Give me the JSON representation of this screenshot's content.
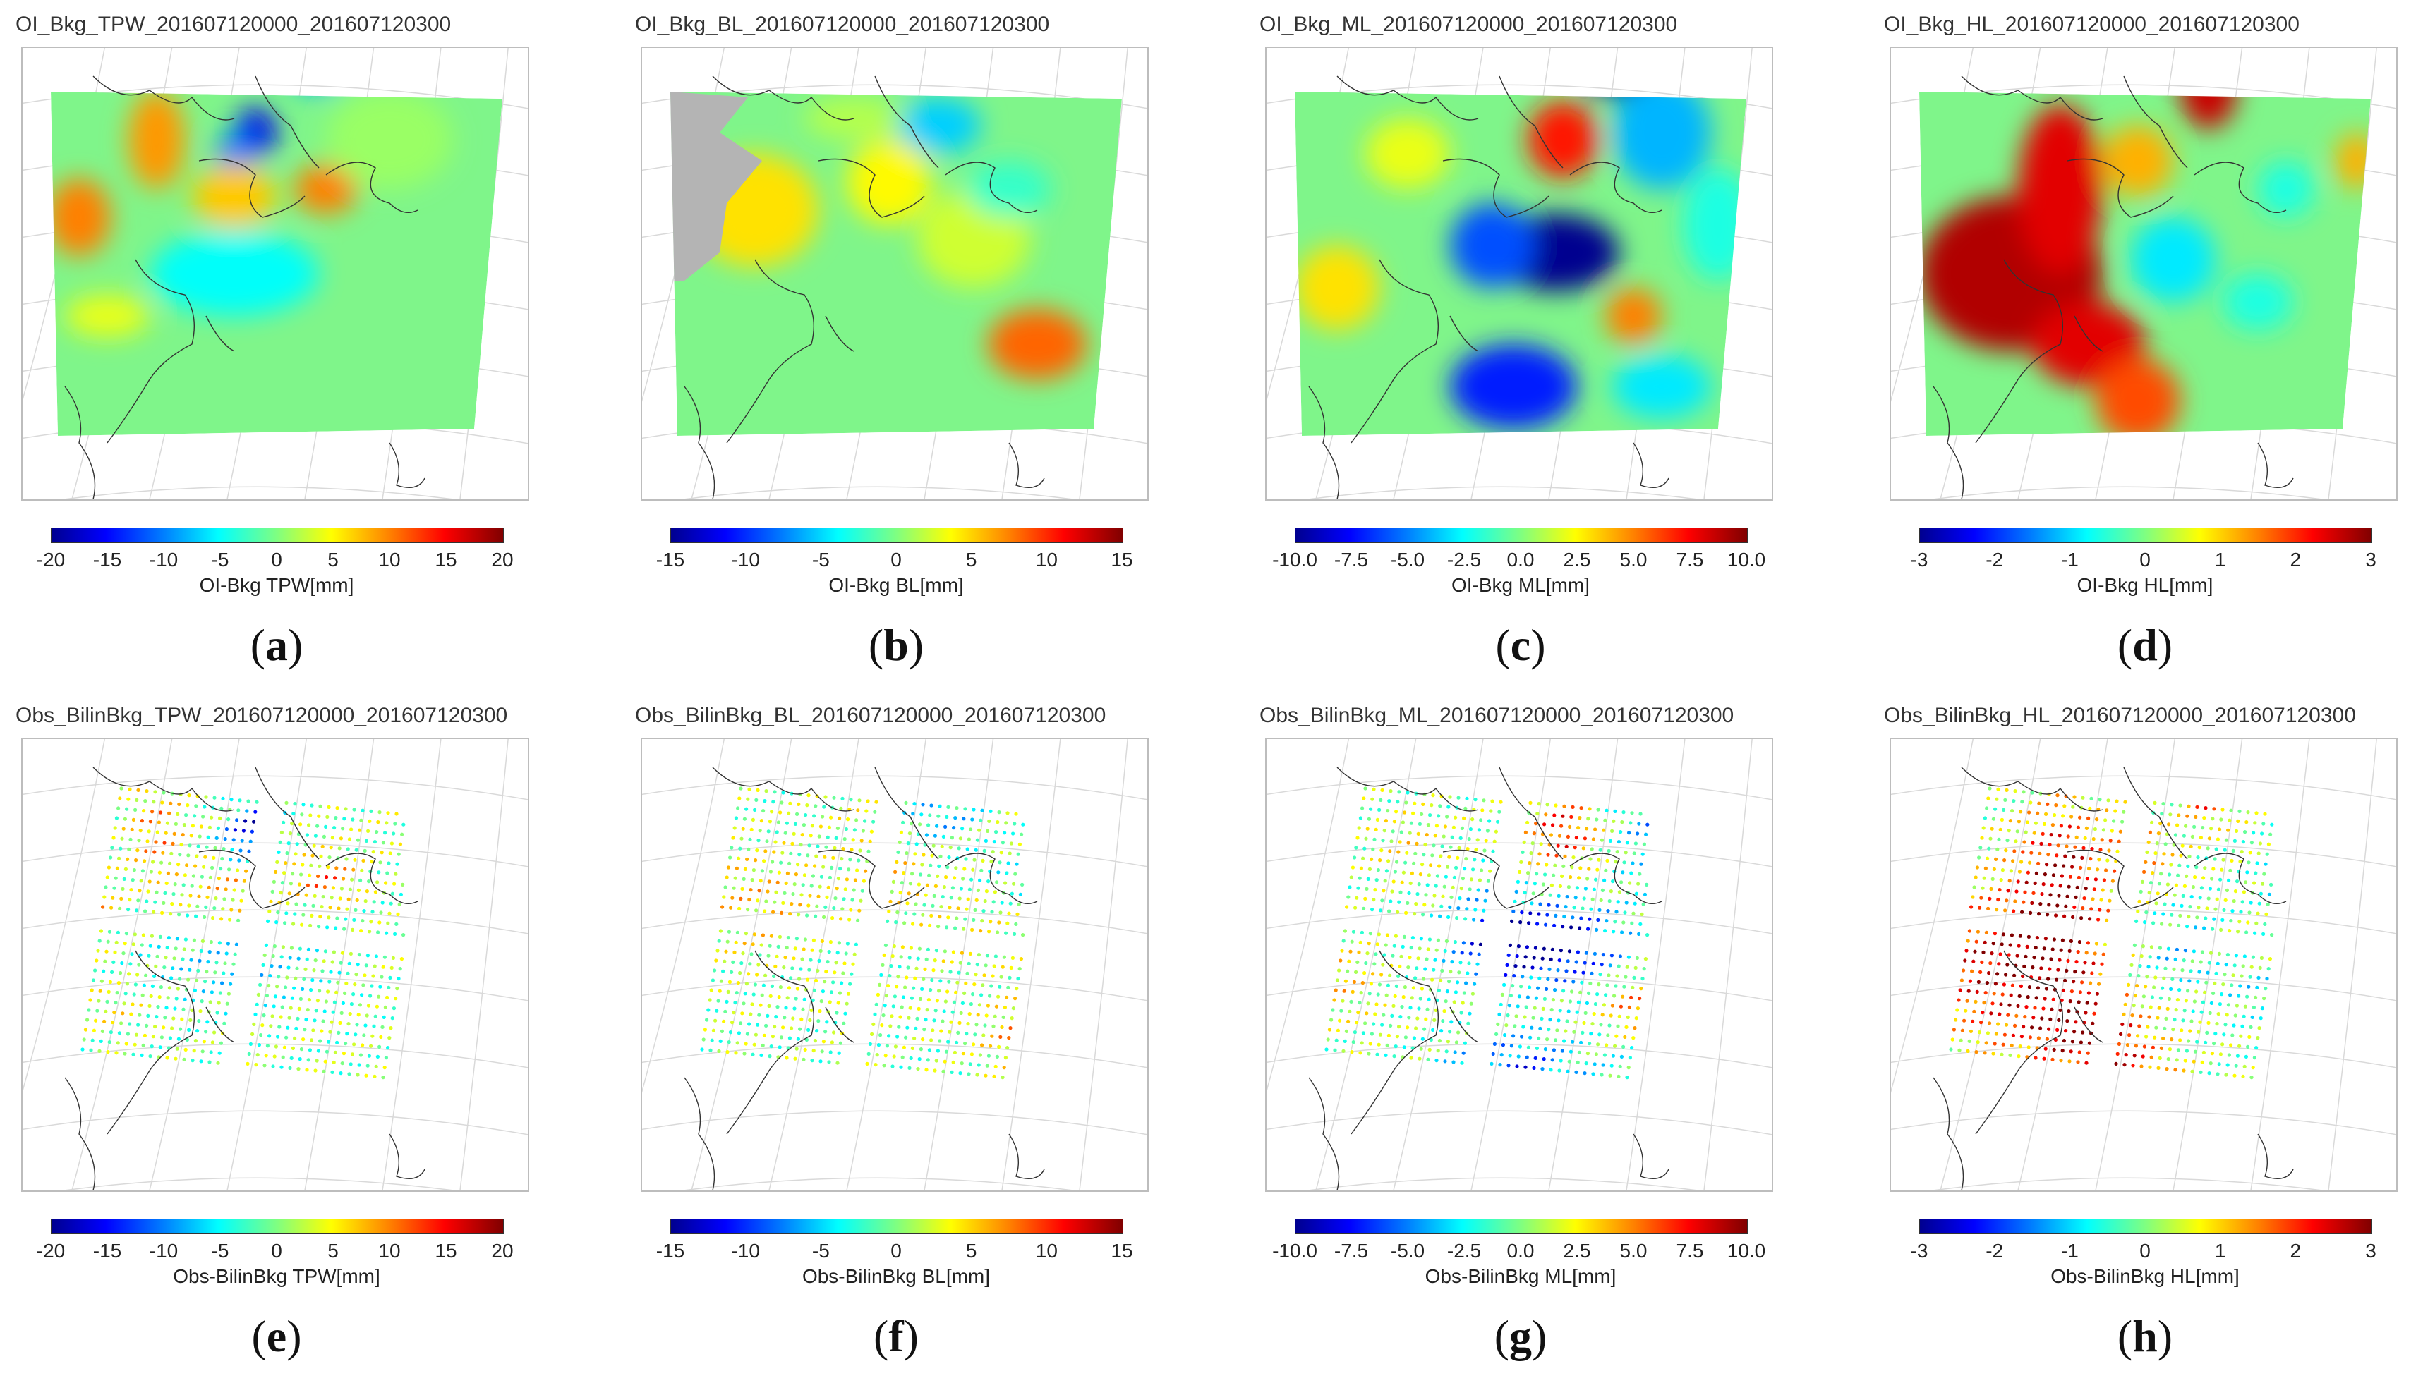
{
  "panels": [
    {
      "id": "a",
      "title": "OI_Bkg_TPW_201607120000_201607120300",
      "cbar_label": "OI-Bkg TPW[mm]",
      "ticks": [
        "-20",
        "-15",
        "-10",
        "-5",
        "0",
        "5",
        "10",
        "15",
        "20"
      ],
      "label_letter": "a",
      "kind": "field",
      "variant": "tpw"
    },
    {
      "id": "b",
      "title": "OI_Bkg_BL_201607120000_201607120300",
      "cbar_label": "OI-Bkg BL[mm]",
      "ticks": [
        "-15",
        "-10",
        "-5",
        "0",
        "5",
        "10",
        "15"
      ],
      "label_letter": "b",
      "kind": "field",
      "variant": "bl"
    },
    {
      "id": "c",
      "title": "OI_Bkg_ML_201607120000_201607120300",
      "cbar_label": "OI-Bkg ML[mm]",
      "ticks": [
        "-10.0",
        "-7.5",
        "-5.0",
        "-2.5",
        "0.0",
        "2.5",
        "5.0",
        "7.5",
        "10.0"
      ],
      "label_letter": "c",
      "kind": "field",
      "variant": "ml"
    },
    {
      "id": "d",
      "title": "OI_Bkg_HL_201607120000_201607120300",
      "cbar_label": "OI-Bkg HL[mm]",
      "ticks": [
        "-3",
        "-2",
        "-1",
        "0",
        "1",
        "2",
        "3"
      ],
      "label_letter": "d",
      "kind": "field",
      "variant": "hl"
    },
    {
      "id": "e",
      "title": "Obs_BilinBkg_TPW_201607120000_201607120300",
      "cbar_label": "Obs-BilinBkg TPW[mm]",
      "ticks": [
        "-20",
        "-15",
        "-10",
        "-5",
        "0",
        "5",
        "10",
        "15",
        "20"
      ],
      "label_letter": "e",
      "kind": "points",
      "variant": "tpw"
    },
    {
      "id": "f",
      "title": "Obs_BilinBkg_BL_201607120000_201607120300",
      "cbar_label": "Obs-BilinBkg BL[mm]",
      "ticks": [
        "-15",
        "-10",
        "-5",
        "0",
        "5",
        "10",
        "15"
      ],
      "label_letter": "f",
      "kind": "points",
      "variant": "bl"
    },
    {
      "id": "g",
      "title": "Obs_BilinBkg_ML_201607120000_201607120300",
      "cbar_label": "Obs-BilinBkg ML[mm]",
      "ticks": [
        "-10.0",
        "-7.5",
        "-5.0",
        "-2.5",
        "0.0",
        "2.5",
        "5.0",
        "7.5",
        "10.0"
      ],
      "label_letter": "g",
      "kind": "points",
      "variant": "ml"
    },
    {
      "id": "h",
      "title": "Obs_BilinBkg_HL_201607120000_201607120300",
      "cbar_label": "Obs-BilinBkg HL[mm]",
      "ticks": [
        "-3",
        "-2",
        "-1",
        "0",
        "1",
        "2",
        "3"
      ],
      "label_letter": "h",
      "kind": "points",
      "variant": "hl"
    }
  ],
  "colors": {
    "field_base": "#7ff58a",
    "missing": "#b4b4b4",
    "coast": "#333333",
    "grid": "#d9d9d9",
    "frame": "#bdbdbd"
  }
}
